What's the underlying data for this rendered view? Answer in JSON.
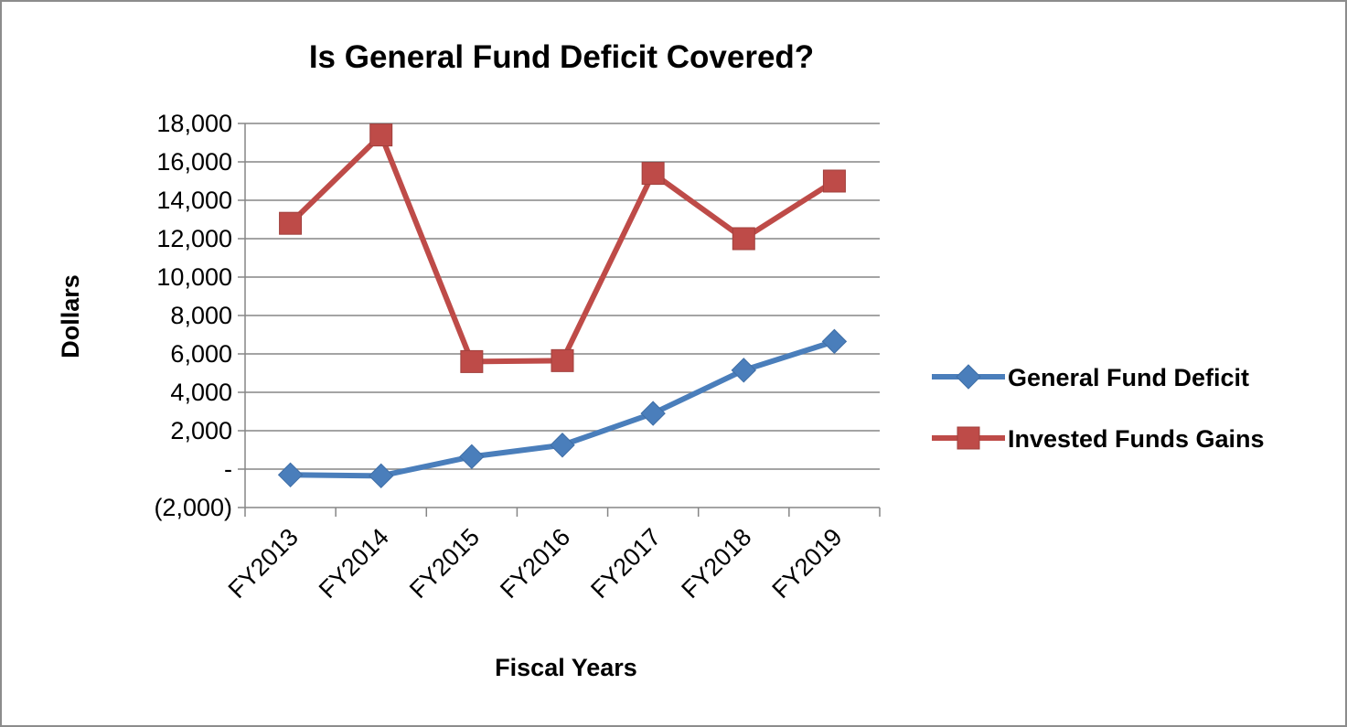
{
  "chart_data": {
    "type": "line",
    "title": "Is General Fund Deficit Covered?",
    "xlabel": "Fiscal Years",
    "ylabel": "Dollars",
    "categories": [
      "FY2013",
      "FY2014",
      "FY2015",
      "FY2016",
      "FY2017",
      "FY2018",
      "FY2019"
    ],
    "ylim": [
      -2000,
      18000
    ],
    "yticks": [
      -2000,
      0,
      2000,
      4000,
      6000,
      8000,
      10000,
      12000,
      14000,
      16000,
      18000
    ],
    "ytick_labels": [
      "(2,000)",
      "-",
      "2,000",
      "4,000",
      "6,000",
      "8,000",
      "10,000",
      "12,000",
      "14,000",
      "16,000",
      "18,000"
    ],
    "grid": true,
    "legend_position": "right",
    "series": [
      {
        "name": "General Fund Deficit",
        "color": "#4a7ebb",
        "marker": "diamond",
        "values": [
          -300,
          -350,
          650,
          1250,
          2900,
          5150,
          6650
        ]
      },
      {
        "name": "Invested Funds Gains",
        "color": "#be4b48",
        "marker": "square",
        "values": [
          12800,
          17400,
          5600,
          5650,
          15400,
          12000,
          15000
        ]
      }
    ]
  }
}
